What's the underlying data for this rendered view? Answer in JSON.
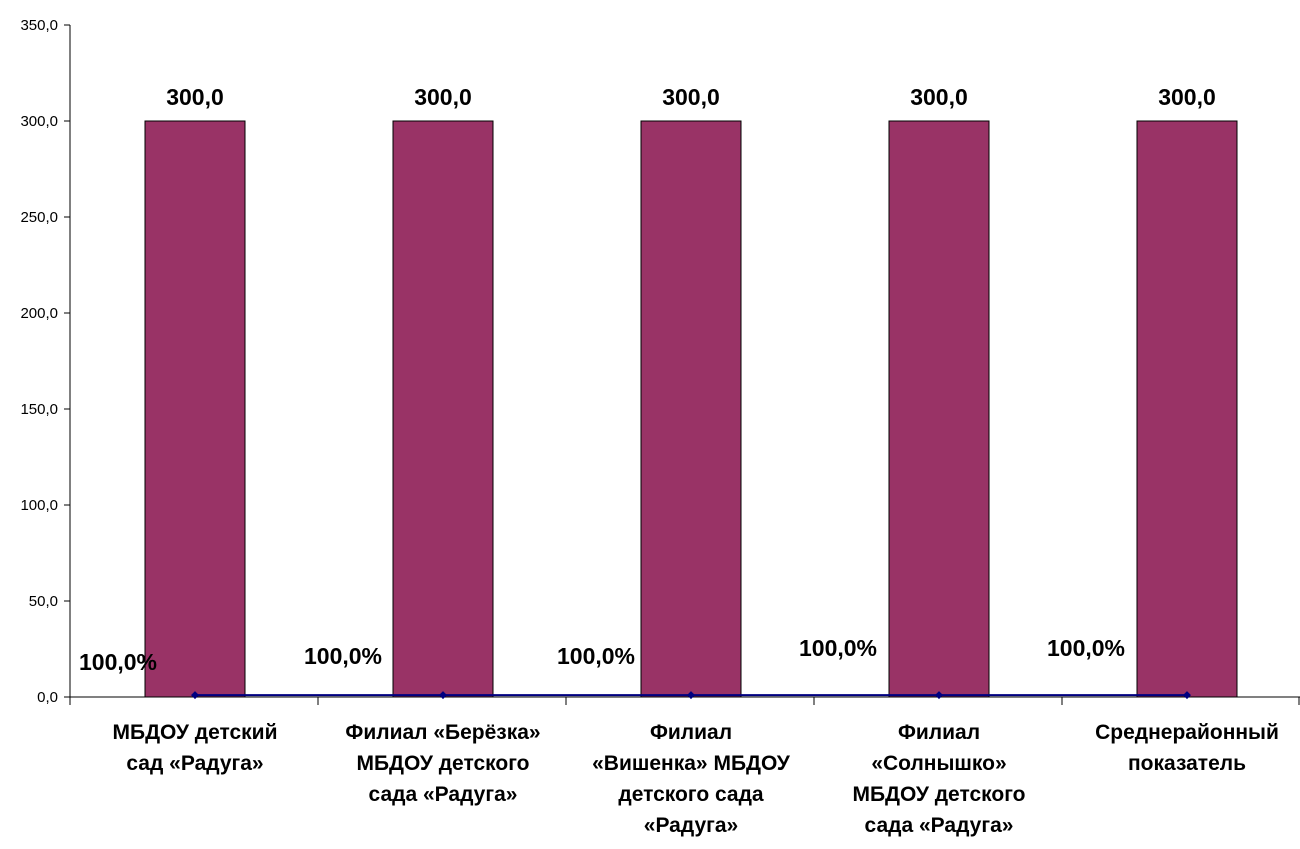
{
  "chart_data": {
    "type": "bar",
    "title": "",
    "xlabel": "",
    "ylabel": "",
    "ylim": [
      0,
      350
    ],
    "y_ticks": [
      "0,0",
      "50,0",
      "100,0",
      "150,0",
      "200,0",
      "250,0",
      "300,0",
      "350,0"
    ],
    "categories": [
      [
        "МБДОУ детский",
        "сад «Радуга»"
      ],
      [
        "Филиал   «Берёзка»",
        "МБДОУ детского",
        "сада «Радуга»"
      ],
      [
        "Филиал",
        "«Вишенка» МБДОУ",
        "детского сада",
        "«Радуга»"
      ],
      [
        "Филиал",
        "«Солнышко»",
        "МБДОУ детского",
        "сада «Радуга»"
      ],
      [
        "Среднерайонный",
        "показатель"
      ]
    ],
    "series": [
      {
        "type": "bar",
        "values": [
          300.0,
          300.0,
          300.0,
          300.0,
          300.0
        ],
        "labels": [
          "300,0",
          "300,0",
          "300,0",
          "300,0",
          "300,0"
        ],
        "color": "#993366"
      },
      {
        "type": "line",
        "values": [
          1.0,
          1.0,
          1.0,
          1.0,
          1.0
        ],
        "labels": [
          "100,0%",
          "100,0%",
          "100,0%",
          "100,0%",
          "100,0%"
        ],
        "color": "#000080"
      }
    ],
    "grid": false,
    "legend": "none"
  }
}
